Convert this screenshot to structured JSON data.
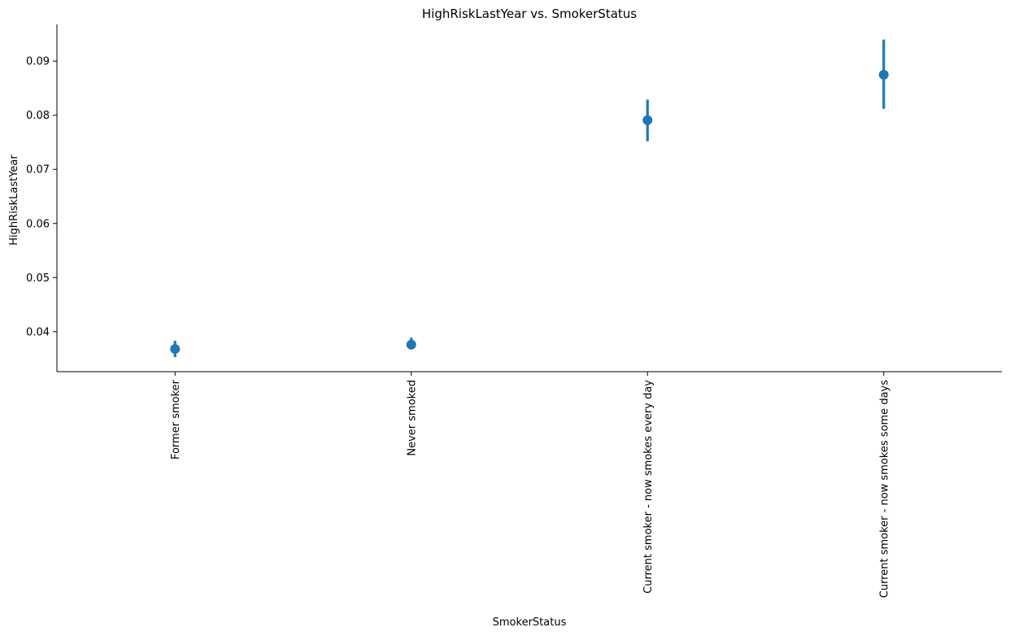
{
  "chart_data": {
    "type": "pointplot",
    "title": "HighRiskLastYear vs. SmokerStatus",
    "xlabel": "SmokerStatus",
    "ylabel": "HighRiskLastYear",
    "categories": [
      "Former smoker",
      "Never smoked",
      "Current smoker - now smokes every day",
      "Current smoker - now smokes some days"
    ],
    "values": [
      0.0368,
      0.0376,
      0.0791,
      0.0875
    ],
    "ci_lower": [
      0.0353,
      0.0367,
      0.0752,
      0.0812
    ],
    "ci_upper": [
      0.0383,
      0.0389,
      0.0829,
      0.094
    ],
    "yticks": [
      0.04,
      0.05,
      0.06,
      0.07,
      0.08,
      0.09
    ],
    "ytick_labels": [
      "0.04",
      "0.05",
      "0.06",
      "0.07",
      "0.08",
      "0.09"
    ],
    "ylim": [
      0.0326,
      0.0968
    ],
    "grid": false,
    "legend": "none",
    "color": "#1f77b4"
  }
}
